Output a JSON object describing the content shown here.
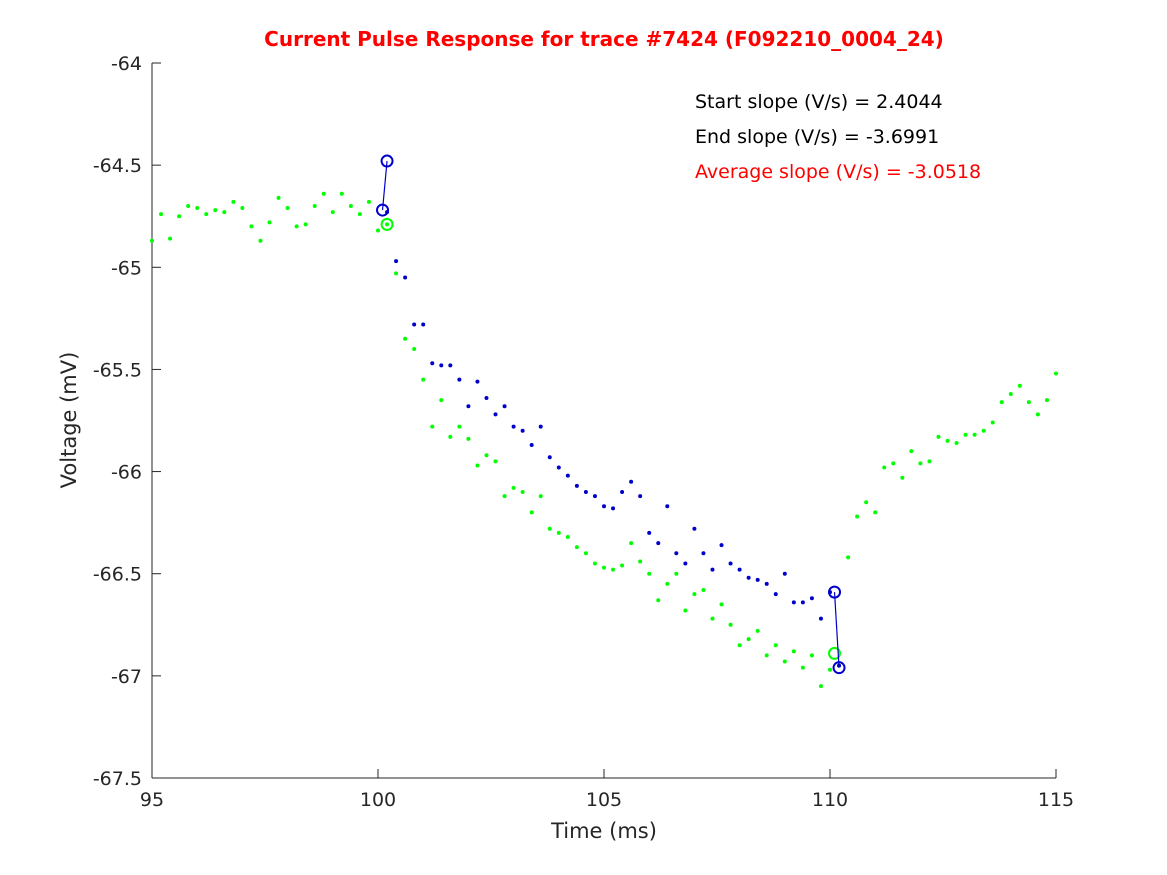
{
  "chart_data": {
    "type": "scatter",
    "title": "Current Pulse Response for trace #7424 (F092210_0004_24)",
    "xlabel": "Time (ms)",
    "ylabel": "Voltage (mV)",
    "xlim": [
      95,
      115
    ],
    "xticks": [
      95,
      100,
      105,
      110,
      115
    ],
    "ylim": [
      -67.5,
      -64
    ],
    "yticks": [
      -67.5,
      -67,
      -66.5,
      -66,
      -65.5,
      -65,
      -64.5,
      -64
    ],
    "grid": false,
    "annotations": [
      {
        "text": "Start slope (V/s) = 2.4044",
        "color": "#000000"
      },
      {
        "text": "End slope (V/s) = -3.6991",
        "color": "#000000"
      },
      {
        "text": "Average slope (V/s) = -3.0518",
        "color": "#ff0000"
      }
    ],
    "series": [
      {
        "color": "#00ff00",
        "marker": "dot",
        "x": [
          95.0,
          95.2,
          95.4,
          95.6,
          95.8,
          96.0,
          96.2,
          96.4,
          96.6,
          96.8,
          97.0,
          97.2,
          97.4,
          97.6,
          97.8,
          98.0,
          98.2,
          98.4,
          98.6,
          98.8,
          99.0,
          99.2,
          99.4,
          99.6,
          99.8,
          100.0,
          100.2,
          100.4,
          100.6,
          100.8,
          101.0,
          101.2,
          101.4,
          101.6,
          101.8,
          102.0,
          102.2,
          102.4,
          102.6,
          102.8,
          103.0,
          103.2,
          103.4,
          103.6,
          103.8,
          104.0,
          104.2,
          104.4,
          104.6,
          104.8,
          105.0,
          105.2,
          105.4,
          105.6,
          105.8,
          106.0,
          106.2,
          106.4,
          106.6,
          106.8,
          107.0,
          107.2,
          107.4,
          107.6,
          107.8,
          108.0,
          108.2,
          108.4,
          108.6,
          108.8,
          109.0,
          109.2,
          109.4,
          109.6,
          109.8,
          110.0,
          110.2,
          110.4,
          110.6,
          110.8,
          111.0,
          111.2,
          111.4,
          111.6,
          111.8,
          112.0,
          112.2,
          112.4,
          112.6,
          112.8,
          113.0,
          113.2,
          113.4,
          113.6,
          113.8,
          114.0,
          114.2,
          114.4,
          114.6,
          114.8,
          115.0
        ],
        "values": [
          -64.87,
          -64.74,
          -64.86,
          -64.75,
          -64.7,
          -64.71,
          -64.74,
          -64.72,
          -64.73,
          -64.68,
          -64.71,
          -64.8,
          -64.87,
          -64.78,
          -64.66,
          -64.71,
          -64.8,
          -64.79,
          -64.7,
          -64.64,
          -64.73,
          -64.64,
          -64.7,
          -64.74,
          -64.68,
          -64.82,
          -64.79,
          -65.03,
          -65.35,
          -65.4,
          -65.55,
          -65.78,
          -65.65,
          -65.83,
          -65.78,
          -65.84,
          -65.97,
          -65.92,
          -65.95,
          -66.12,
          -66.08,
          -66.1,
          -66.2,
          -66.12,
          -66.28,
          -66.3,
          -66.32,
          -66.37,
          -66.4,
          -66.45,
          -66.47,
          -66.48,
          -66.46,
          -66.35,
          -66.44,
          -66.5,
          -66.63,
          -66.55,
          -66.5,
          -66.68,
          -66.6,
          -66.58,
          -66.72,
          -66.65,
          -66.75,
          -66.85,
          -66.82,
          -66.78,
          -66.9,
          -66.85,
          -66.93,
          -66.88,
          -66.96,
          -66.9,
          -67.05,
          -66.97,
          -66.95,
          -66.42,
          -66.22,
          -66.15,
          -66.2,
          -65.98,
          -65.96,
          -66.03,
          -65.9,
          -65.96,
          -65.95,
          -65.83,
          -65.85,
          -65.86,
          -65.82,
          -65.82,
          -65.8,
          -65.76,
          -65.66,
          -65.62,
          -65.58,
          -65.66,
          -65.72,
          -65.65,
          -65.52
        ]
      },
      {
        "color": "#0000cc",
        "marker": "dot",
        "x": [
          100.2,
          100.4,
          100.6,
          100.8,
          101.0,
          101.2,
          101.4,
          101.6,
          101.8,
          102.0,
          102.2,
          102.4,
          102.6,
          102.8,
          103.0,
          103.2,
          103.4,
          103.6,
          103.8,
          104.0,
          104.2,
          104.4,
          104.6,
          104.8,
          105.0,
          105.2,
          105.4,
          105.6,
          105.8,
          106.0,
          106.2,
          106.4,
          106.6,
          106.8,
          107.0,
          107.2,
          107.4,
          107.6,
          107.8,
          108.0,
          108.2,
          108.4,
          108.6,
          108.8,
          109.0,
          109.2,
          109.4,
          109.6,
          109.8,
          110.0,
          110.2
        ],
        "values": [
          -64.73,
          -64.97,
          -65.05,
          -65.28,
          -65.28,
          -65.47,
          -65.48,
          -65.48,
          -65.55,
          -65.68,
          -65.56,
          -65.64,
          -65.72,
          -65.68,
          -65.78,
          -65.8,
          -65.87,
          -65.78,
          -65.93,
          -65.98,
          -66.02,
          -66.07,
          -66.1,
          -66.12,
          -66.17,
          -66.18,
          -66.1,
          -66.05,
          -66.12,
          -66.3,
          -66.35,
          -66.17,
          -66.4,
          -66.45,
          -66.28,
          -66.4,
          -66.48,
          -66.36,
          -66.45,
          -66.48,
          -66.52,
          -66.53,
          -66.55,
          -66.6,
          -66.5,
          -66.64,
          -66.64,
          -66.62,
          -66.72,
          -66.59,
          -66.95
        ]
      },
      {
        "color": "#00ff00",
        "marker": "circle",
        "x": [
          100.2,
          110.1
        ],
        "values": [
          -64.79,
          -66.89
        ]
      },
      {
        "color": "#0000cc",
        "marker": "circle",
        "line": "pairs",
        "x": [
          100.1,
          100.2,
          110.1,
          110.2
        ],
        "values": [
          -64.72,
          -64.48,
          -66.59,
          -66.96
        ]
      }
    ]
  }
}
